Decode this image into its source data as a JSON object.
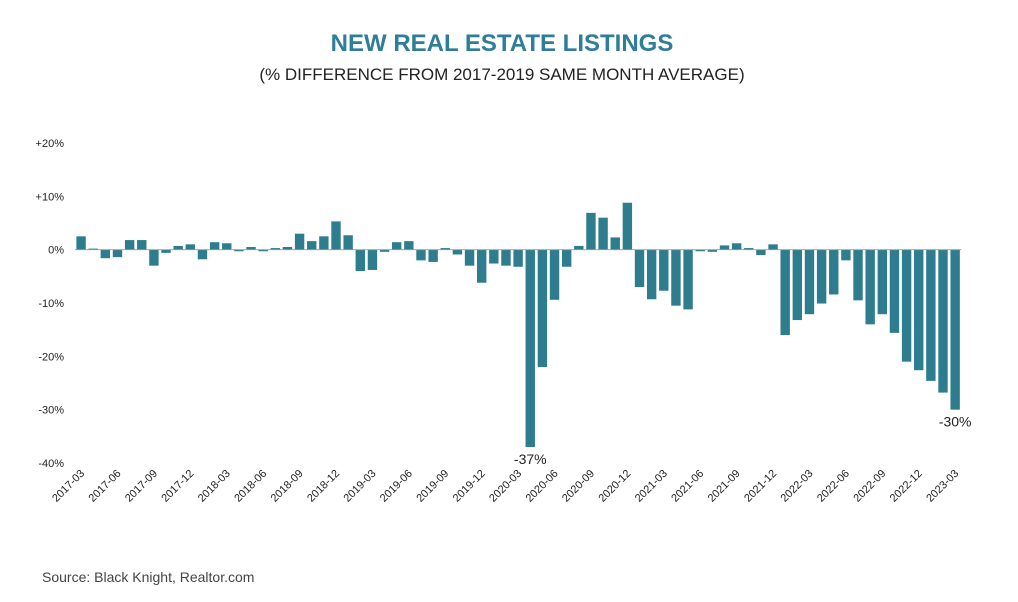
{
  "colors": {
    "bar": "#2e7d8f",
    "title": "#2e7d99",
    "axis": "#999999"
  },
  "source": "Source: Black Knight, Realtor.com",
  "chart_data": {
    "type": "bar",
    "title": "NEW REAL ESTATE LISTINGS",
    "subtitle": "(% DIFFERENCE FROM 2017-2019 SAME MONTH AVERAGE)",
    "xlabel": "",
    "ylabel": "",
    "ylim": [
      -40,
      20
    ],
    "yticks": [
      20,
      10,
      0,
      -10,
      -20,
      -30,
      -40
    ],
    "ytick_labels": [
      "+20%",
      "+10%",
      "0%",
      "-10%",
      "-20%",
      "-30%",
      "-40%"
    ],
    "grid": false,
    "legend": "none",
    "categories": [
      "2017-03",
      "2017-04",
      "2017-05",
      "2017-06",
      "2017-07",
      "2017-08",
      "2017-09",
      "2017-10",
      "2017-11",
      "2017-12",
      "2018-01",
      "2018-02",
      "2018-03",
      "2018-04",
      "2018-05",
      "2018-06",
      "2018-07",
      "2018-08",
      "2018-09",
      "2018-10",
      "2018-11",
      "2018-12",
      "2019-01",
      "2019-02",
      "2019-03",
      "2019-04",
      "2019-05",
      "2019-06",
      "2019-07",
      "2019-08",
      "2019-09",
      "2019-10",
      "2019-11",
      "2019-12",
      "2020-01",
      "2020-02",
      "2020-03",
      "2020-04",
      "2020-05",
      "2020-06",
      "2020-07",
      "2020-08",
      "2020-09",
      "2020-10",
      "2020-11",
      "2020-12",
      "2021-01",
      "2021-02",
      "2021-03",
      "2021-04",
      "2021-05",
      "2021-06",
      "2021-07",
      "2021-08",
      "2021-09",
      "2021-10",
      "2021-11",
      "2021-12",
      "2022-01",
      "2022-02",
      "2022-03",
      "2022-04",
      "2022-05",
      "2022-06",
      "2022-07",
      "2022-08",
      "2022-09",
      "2022-10",
      "2022-11",
      "2022-12",
      "2023-01",
      "2023-02",
      "2023-03"
    ],
    "tick_labels": [
      "2017-03",
      "2017-06",
      "2017-09",
      "2017-12",
      "2018-03",
      "2018-06",
      "2018-09",
      "2018-12",
      "2019-03",
      "2019-06",
      "2019-09",
      "2019-12",
      "2020-03",
      "2020-06",
      "2020-09",
      "2020-12",
      "2021-03",
      "2021-06",
      "2021-09",
      "2021-12",
      "2022-03",
      "2022-06",
      "2022-09",
      "2022-12",
      "2023-03"
    ],
    "values": [
      2.5,
      0.2,
      -1.6,
      -1.4,
      1.8,
      1.8,
      -3.0,
      -0.6,
      0.7,
      1.0,
      -1.8,
      1.4,
      1.2,
      -0.3,
      0.5,
      -0.3,
      0.3,
      0.5,
      3.0,
      1.6,
      2.5,
      5.3,
      2.7,
      -4.0,
      -3.8,
      -0.4,
      1.4,
      1.6,
      -2.0,
      -2.3,
      0.3,
      -0.9,
      -3.0,
      -6.2,
      -2.6,
      -3.0,
      -3.2,
      -37.0,
      -22.0,
      -9.4,
      -3.2,
      0.7,
      6.9,
      6.0,
      2.3,
      8.8,
      -7.0,
      -9.3,
      -7.7,
      -10.5,
      -11.2,
      -0.3,
      -0.4,
      0.8,
      1.2,
      0.3,
      -1.0,
      1.0,
      -16.0,
      -13.2,
      -12.1,
      -10.1,
      -8.4,
      -2.0,
      -9.5,
      -14.0,
      -12.1,
      -15.6,
      -21.0,
      -22.6,
      -24.6,
      -26.8,
      -30.0
    ],
    "annotations": [
      {
        "category": "2020-04",
        "text": "-37%"
      },
      {
        "category": "2023-03",
        "text": "-30%"
      }
    ]
  }
}
